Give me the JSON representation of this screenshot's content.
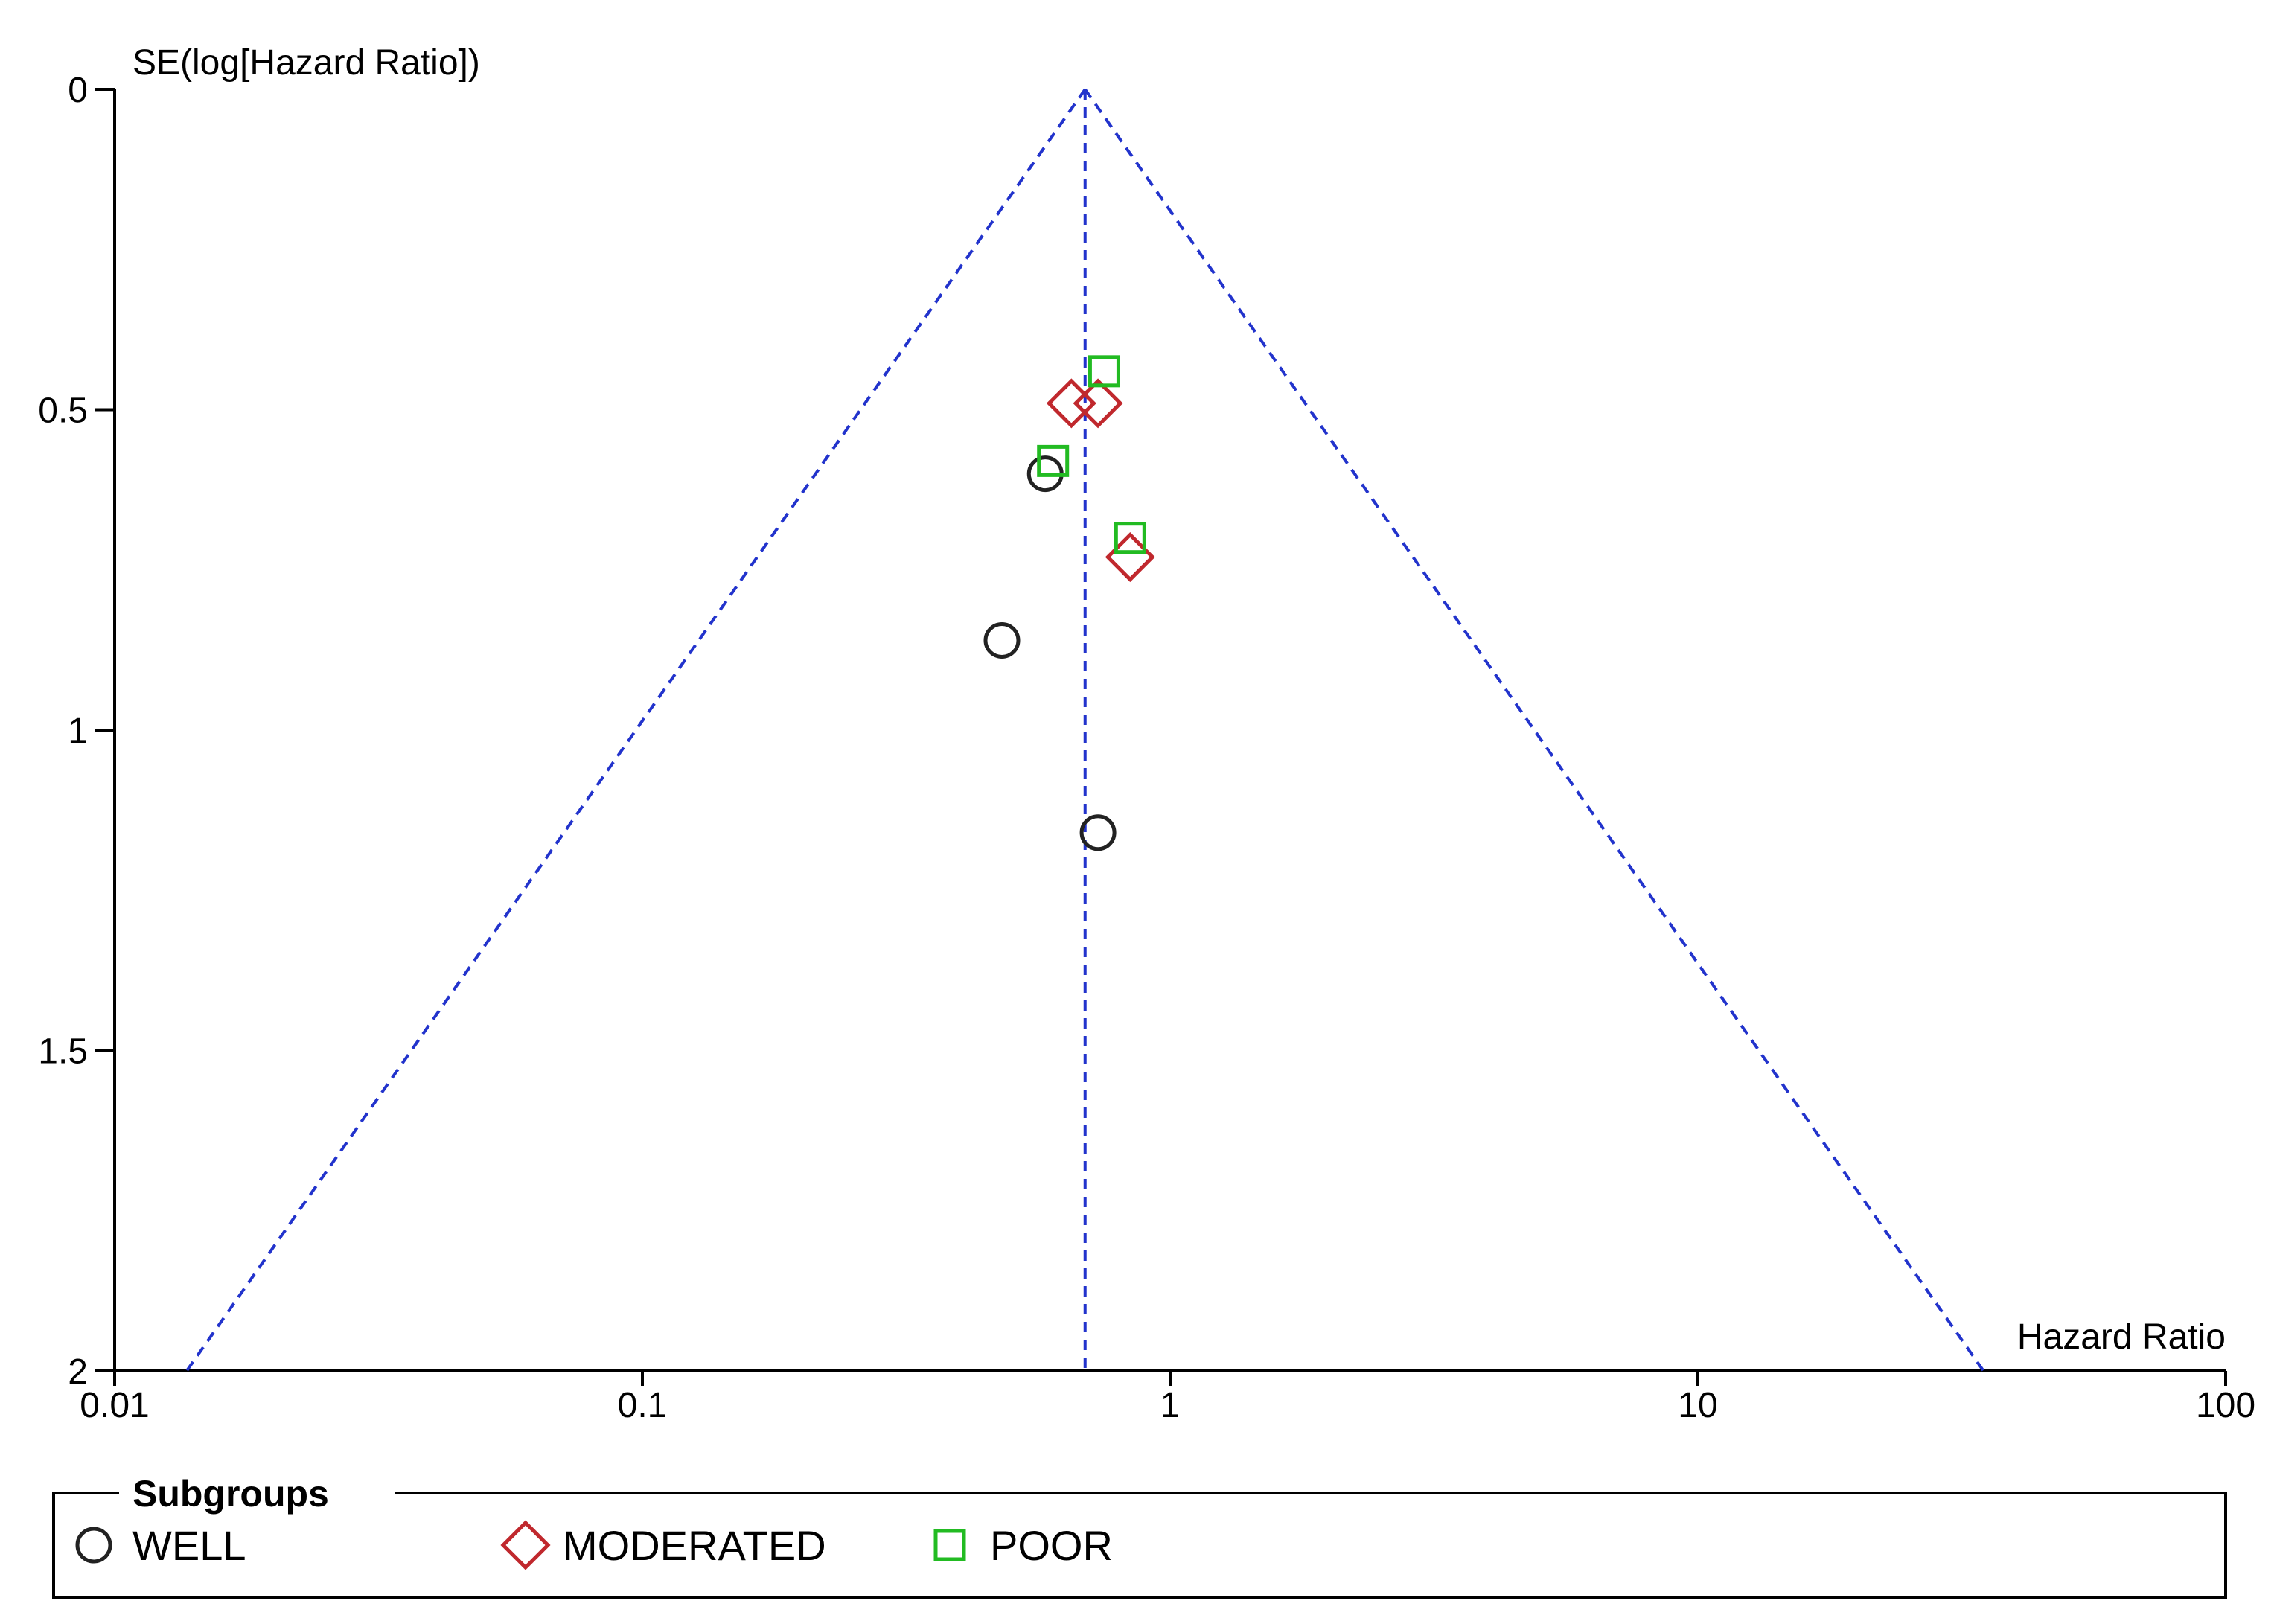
{
  "chart_data": {
    "type": "scatter",
    "ylabel": "SE(log[Hazard Ratio])",
    "xlabel": "Hazard Ratio",
    "x_scale": "log",
    "xlim": [
      0.01,
      100
    ],
    "ylim": [
      0,
      2
    ],
    "y_inverted": true,
    "x_ticks": [
      "0.01",
      "0.1",
      "1",
      "10",
      "100"
    ],
    "y_ticks": [
      "0",
      "0.5",
      "1",
      "1.5",
      "2"
    ],
    "x_tick_values": [
      0.01,
      0.1,
      1,
      10,
      100
    ],
    "y_tick_values": [
      0,
      0.5,
      1,
      1.5,
      2
    ],
    "pooled_estimate": 0.69,
    "grid": false,
    "legend": {
      "title": "Subgroups",
      "position": "bottom"
    },
    "series": [
      {
        "name": "WELL",
        "marker": "circle",
        "color": "#222222",
        "points": [
          {
            "x": 0.58,
            "y": 0.6
          },
          {
            "x": 0.48,
            "y": 0.86
          },
          {
            "x": 0.73,
            "y": 1.16
          }
        ]
      },
      {
        "name": "MODERATED",
        "marker": "diamond",
        "color": "#c0282d",
        "points": [
          {
            "x": 0.65,
            "y": 0.49
          },
          {
            "x": 0.73,
            "y": 0.49
          },
          {
            "x": 0.84,
            "y": 0.73
          }
        ]
      },
      {
        "name": "POOR",
        "marker": "square",
        "color": "#22bb22",
        "points": [
          {
            "x": 0.75,
            "y": 0.44
          },
          {
            "x": 0.6,
            "y": 0.58
          },
          {
            "x": 0.84,
            "y": 0.7
          }
        ]
      }
    ],
    "funnel_color": "#2233cc"
  }
}
